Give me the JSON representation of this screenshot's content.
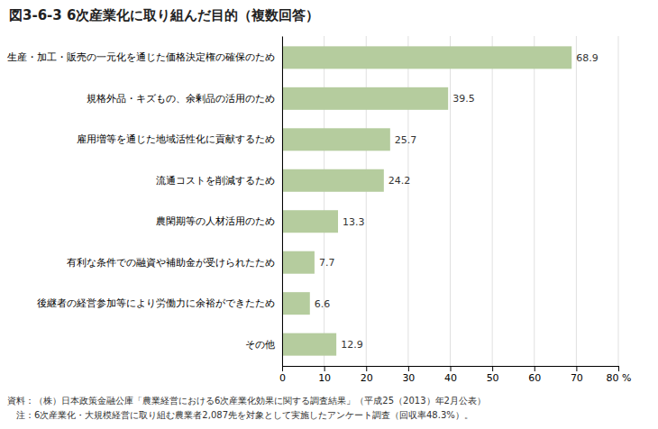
{
  "chart_data": {
    "type": "bar",
    "orientation": "horizontal",
    "title": "図3-6-3 6次産業化に取り組んだ目的（複数回答）",
    "categories": [
      "生産・加工・販売の一元化を通じた価格決定権の確保のため",
      "規格外品・キズもの、余剰品の活用のため",
      "雇用増等を通じた地域活性化に貢献するため",
      "流通コストを削減するため",
      "農閑期等の人材活用のため",
      "有利な条件での融資や補助金が受けられたため",
      "後継者の経営参加等により労働力に余裕ができたため",
      "その他"
    ],
    "values": [
      68.9,
      39.5,
      25.7,
      24.2,
      13.3,
      7.7,
      6.6,
      12.9
    ],
    "color": "#b5cc9e",
    "xlim": [
      0,
      80
    ],
    "xticks": [
      0,
      10,
      20,
      30,
      40,
      50,
      60,
      70,
      {
        "value": 80,
        "label": "80 %"
      }
    ],
    "grid": true,
    "data_labels": true,
    "annotations": [
      "資料：（株）日本政策金融公庫「農業経営における6次産業化効果に関する調査結果」（平成25（2013）年2月公表）",
      "　注：6次産業化・大規模経営に取り組む農業者2,087先を対象として実施したアンケート調査（回収率48.3%）。"
    ]
  }
}
